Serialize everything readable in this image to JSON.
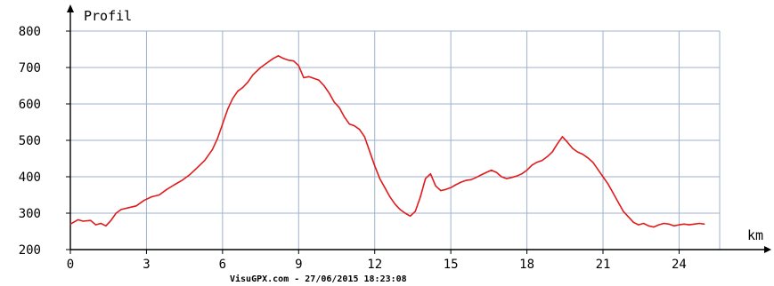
{
  "chart_data": {
    "type": "line",
    "title": "",
    "ylabel": "Profil",
    "xlabel": "km",
    "footer": "VisuGPX.com - 27/06/2015 18:23:08",
    "xlim": [
      0,
      25.6
    ],
    "ylim": [
      200,
      800
    ],
    "x_ticks": [
      0,
      3,
      6,
      9,
      12,
      15,
      18,
      21,
      24
    ],
    "y_ticks": [
      200,
      300,
      400,
      500,
      600,
      700,
      800
    ],
    "grid": true,
    "line_color": "#e01b1b",
    "grid_color": "#9fb2cc",
    "series": [
      {
        "x": [
          0,
          0.3,
          0.5,
          0.8,
          1.0,
          1.2,
          1.4,
          1.6,
          1.8,
          2.0,
          2.3,
          2.6,
          2.9,
          3.2,
          3.5,
          3.8,
          4.1,
          4.4,
          4.7,
          5.0,
          5.3,
          5.6,
          5.8,
          6.0,
          6.2,
          6.4,
          6.6,
          6.8,
          7.0,
          7.2,
          7.5,
          7.8,
          8.0,
          8.2,
          8.4,
          8.6,
          8.8,
          9.0,
          9.2,
          9.4,
          9.6,
          9.8,
          10.0,
          10.2,
          10.4,
          10.6,
          10.8,
          11.0,
          11.2,
          11.4,
          11.6,
          11.8,
          12.0,
          12.2,
          12.4,
          12.6,
          12.8,
          13.0,
          13.2,
          13.4,
          13.6,
          13.8,
          14.0,
          14.2,
          14.4,
          14.6,
          14.8,
          15.0,
          15.2,
          15.4,
          15.6,
          15.8,
          16.0,
          16.2,
          16.4,
          16.6,
          16.8,
          17.0,
          17.2,
          17.4,
          17.6,
          17.8,
          18.0,
          18.2,
          18.4,
          18.6,
          18.8,
          19.0,
          19.2,
          19.4,
          19.6,
          19.8,
          20.0,
          20.2,
          20.4,
          20.6,
          20.8,
          21.0,
          21.2,
          21.4,
          21.6,
          21.8,
          22.0,
          22.2,
          22.4,
          22.6,
          22.8,
          23.0,
          23.2,
          23.4,
          23.6,
          23.8,
          24.0,
          24.2,
          24.4,
          24.6,
          24.8,
          25.0
        ],
        "y": [
          270,
          282,
          278,
          280,
          268,
          272,
          265,
          280,
          300,
          310,
          315,
          320,
          335,
          345,
          350,
          365,
          378,
          390,
          405,
          425,
          445,
          475,
          505,
          545,
          585,
          615,
          635,
          645,
          660,
          680,
          700,
          715,
          725,
          732,
          725,
          720,
          718,
          705,
          672,
          675,
          670,
          665,
          650,
          630,
          605,
          590,
          565,
          545,
          540,
          530,
          510,
          470,
          430,
          395,
          370,
          345,
          325,
          310,
          300,
          292,
          305,
          345,
          395,
          408,
          375,
          362,
          365,
          370,
          378,
          385,
          390,
          392,
          398,
          405,
          412,
          418,
          412,
          400,
          395,
          398,
          402,
          408,
          418,
          432,
          440,
          445,
          455,
          468,
          490,
          510,
          495,
          478,
          468,
          462,
          452,
          440,
          420,
          400,
          380,
          355,
          330,
          305,
          290,
          275,
          268,
          272,
          265,
          262,
          268,
          272,
          270,
          265,
          268,
          270,
          268,
          270,
          272,
          270
        ]
      }
    ]
  }
}
